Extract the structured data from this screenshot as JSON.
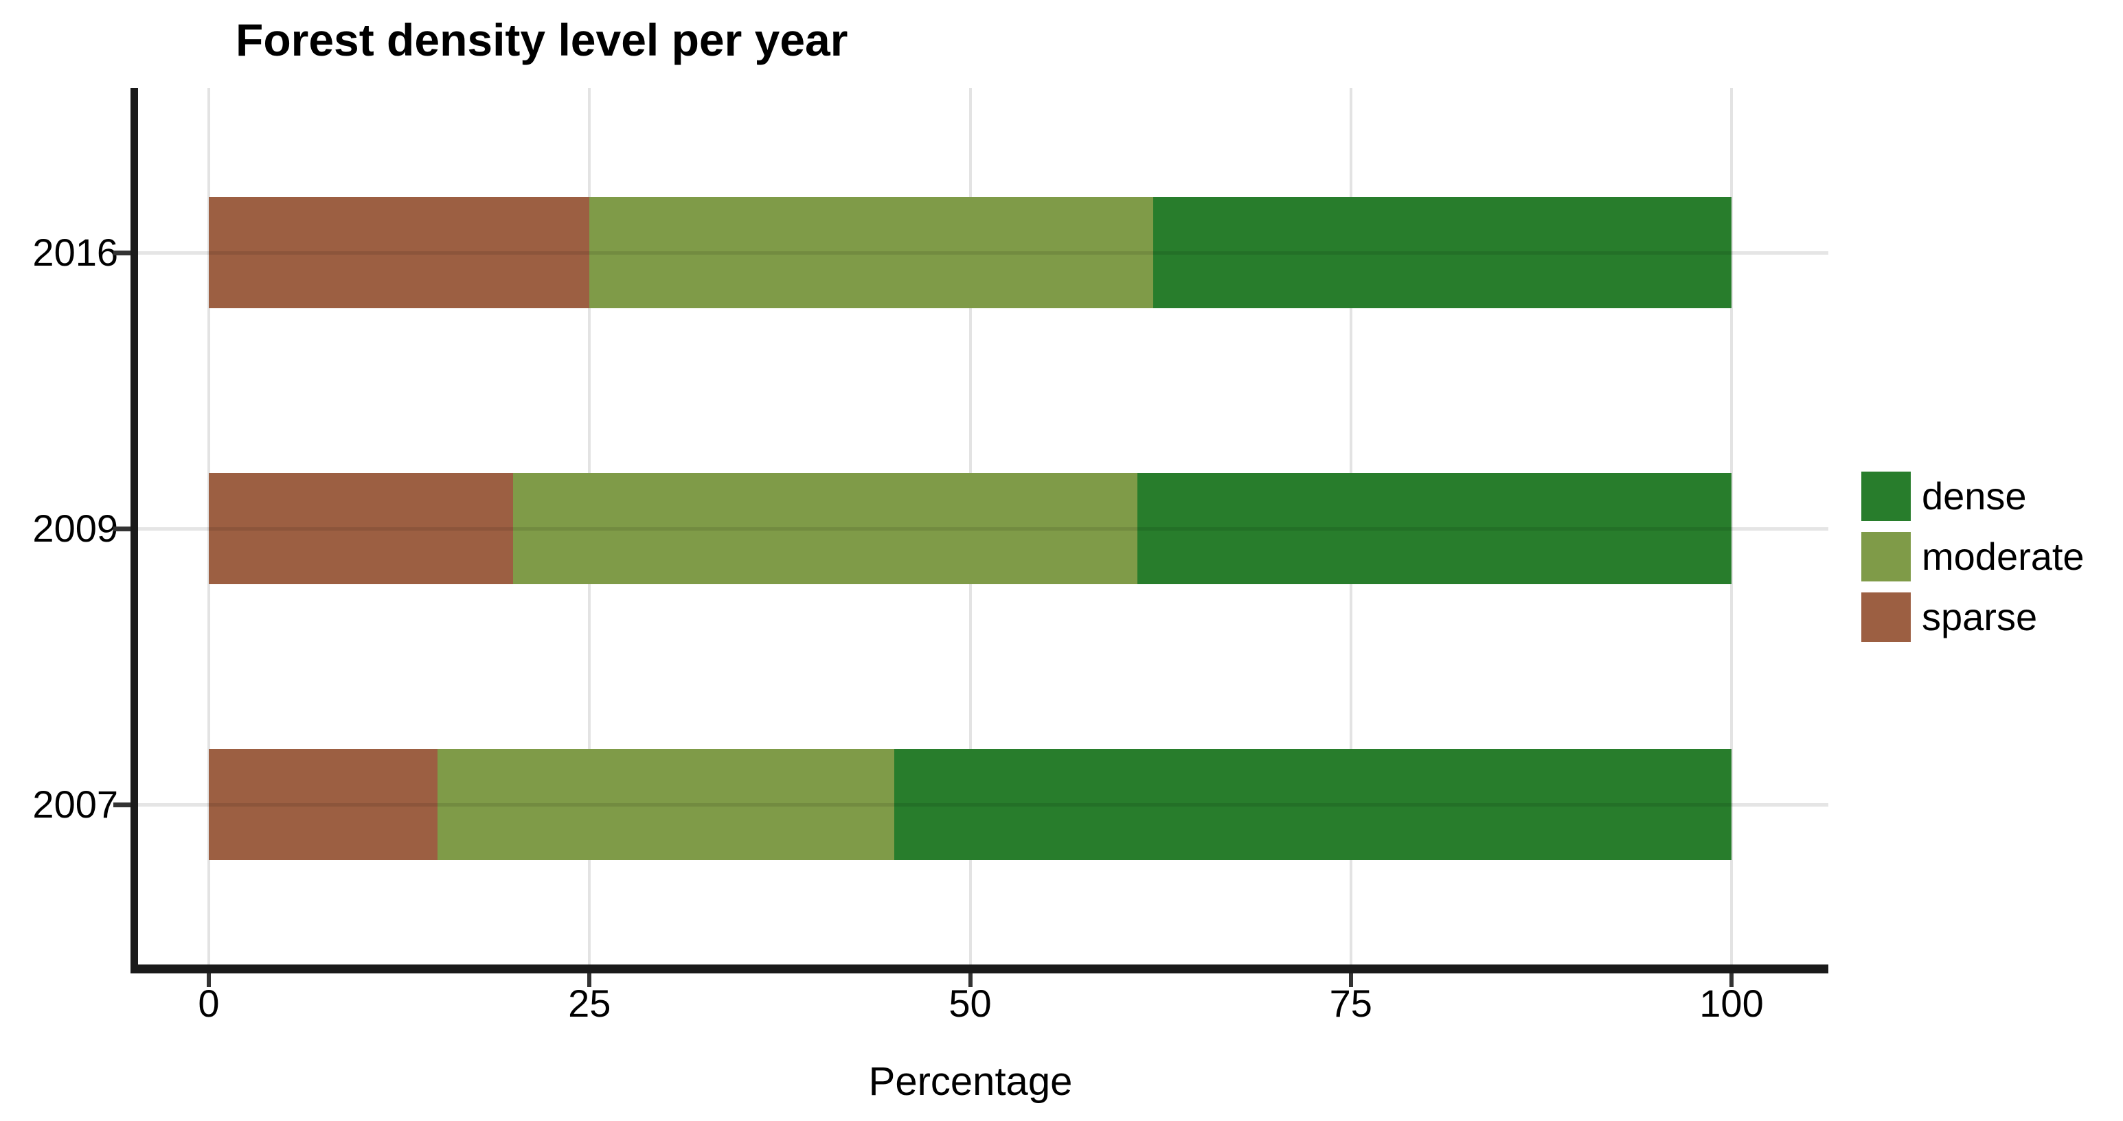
{
  "title": "Forest density level per year",
  "chart_data": {
    "type": "bar",
    "orientation": "horizontal",
    "stacked": true,
    "title": "Forest density level per year",
    "xlabel": "Percentage",
    "ylabel": "",
    "categories": [
      "2016",
      "2009",
      "2007"
    ],
    "series": [
      {
        "name": "sparse",
        "color": "#9c5f42",
        "values": [
          25,
          20,
          15
        ]
      },
      {
        "name": "moderate",
        "color": "#7f9b48",
        "values": [
          37,
          41,
          30
        ]
      },
      {
        "name": "dense",
        "color": "#287d2c",
        "values": [
          38,
          39,
          55
        ]
      }
    ],
    "x_ticks": [
      0,
      25,
      50,
      75,
      100
    ],
    "xlim": [
      0,
      100
    ],
    "grid": true,
    "legend": {
      "position": "right",
      "entries": [
        "dense",
        "moderate",
        "sparse"
      ]
    }
  },
  "style_colors": {
    "axis": "#1a1a1a",
    "gridline": "#e3e3e3",
    "text": "#000000",
    "background": "#ffffff"
  }
}
